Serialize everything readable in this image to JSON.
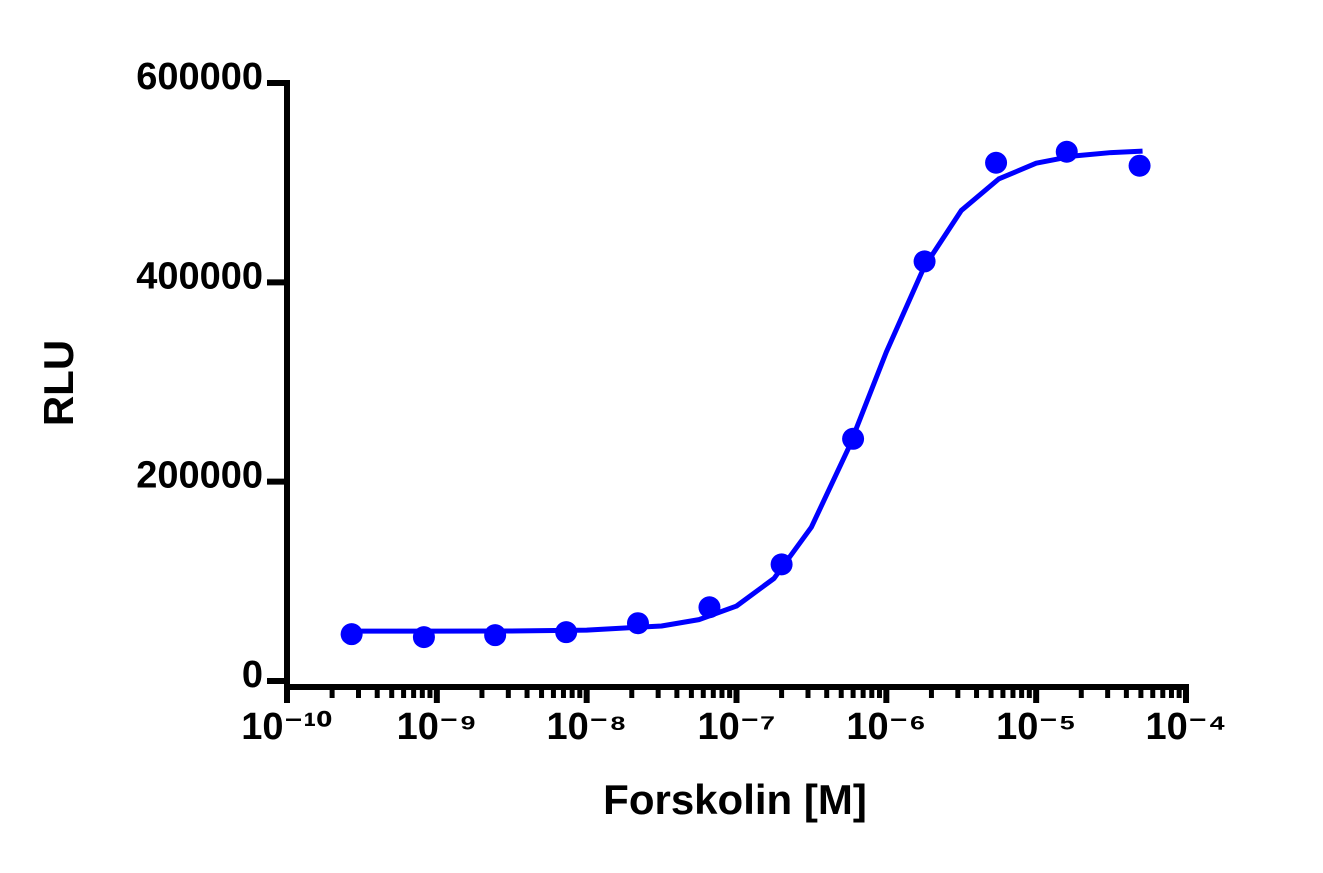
{
  "chart_data": {
    "type": "scatter",
    "x_label": "Forskolin [M]",
    "y_label": "RLU",
    "xscale": "log",
    "xlim": [
      1e-10,
      0.0001
    ],
    "xticks": [
      {
        "value": 1e-10,
        "label": "10⁻¹⁰"
      },
      {
        "value": 1e-09,
        "label": "10⁻⁹"
      },
      {
        "value": 1e-08,
        "label": "10⁻⁸"
      },
      {
        "value": 1e-07,
        "label": "10⁻⁷"
      },
      {
        "value": 1e-06,
        "label": "10⁻⁶"
      },
      {
        "value": 1e-05,
        "label": "10⁻⁵"
      },
      {
        "value": 0.0001,
        "label": "10⁻⁴"
      }
    ],
    "xminorticks": [
      2e-10,
      3e-10,
      4e-10,
      5e-10,
      6e-10,
      7e-10,
      8e-10,
      9e-10,
      2e-09,
      3e-09,
      4e-09,
      5e-09,
      6e-09,
      7e-09,
      8e-09,
      9e-09,
      2e-08,
      3e-08,
      4e-08,
      5e-08,
      6e-08,
      7e-08,
      8e-08,
      9e-08,
      2e-07,
      3e-07,
      4e-07,
      5e-07,
      6e-07,
      7e-07,
      8e-07,
      9e-07,
      2e-06,
      3e-06,
      4e-06,
      5e-06,
      6e-06,
      7e-06,
      8e-06,
      9e-06,
      2e-05,
      3e-05,
      4e-05,
      5e-05,
      6e-05,
      7e-05,
      8e-05,
      9e-05
    ],
    "ylim": [
      0,
      600000
    ],
    "yticks": [
      0,
      200000,
      400000,
      600000
    ],
    "series": [
      {
        "type": "scatter",
        "color": "#0000ff",
        "x": [
          2.7e-10,
          8.2e-10,
          2.45e-09,
          7.3e-09,
          2.2e-08,
          6.6e-08,
          2e-07,
          6e-07,
          1.8e-06,
          5.4e-06,
          1.6e-05,
          4.9e-05
        ],
        "values": [
          47000,
          44000,
          46000,
          49000,
          58000,
          74000,
          117000,
          243000,
          421000,
          520000,
          531000,
          517000
        ]
      },
      {
        "type": "line",
        "color": "#0000ff",
        "x": [
          2.69e-10,
          1e-09,
          3.16e-09,
          1e-08,
          3.16e-08,
          5.62e-08,
          1e-07,
          1.78e-07,
          3.16e-07,
          5.62e-07,
          1e-06,
          1.78e-06,
          3.16e-06,
          5.62e-06,
          1e-05,
          1.78e-05,
          3.16e-05,
          5.13e-05
        ],
        "values": [
          50000,
          50000,
          50200,
          51100,
          55200,
          61600,
          75200,
          102900,
          154300,
          234300,
          330100,
          414800,
          472000,
          503700,
          519500,
          526800,
          530200,
          531600
        ]
      }
    ]
  }
}
